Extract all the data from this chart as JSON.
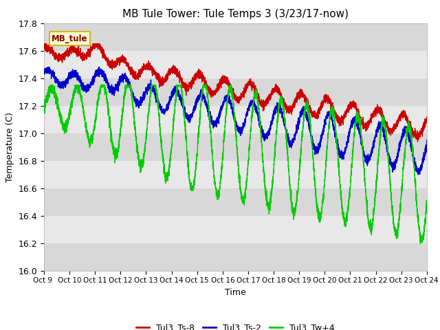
{
  "title": "MB Tule Tower: Tule Temps 3 (3/23/17-now)",
  "xlabel": "Time",
  "ylabel": "Temperature (C)",
  "ylim": [
    16.0,
    17.8
  ],
  "xlim": [
    0,
    15
  ],
  "yticks": [
    16.0,
    16.2,
    16.4,
    16.6,
    16.8,
    17.0,
    17.2,
    17.4,
    17.6,
    17.8
  ],
  "xtick_labels": [
    "Oct 9 ",
    "Oct 10",
    "Oct 11",
    "Oct 12",
    "Oct 13",
    "Oct 14",
    "Oct 15",
    "Oct 16",
    "Oct 17",
    "Oct 18",
    "Oct 19",
    "Oct 20",
    "Oct 21",
    "Oct 22",
    "Oct 23",
    "Oct 24"
  ],
  "legend_labels": [
    "Tul3_Ts-8",
    "Tul3_Ts-2",
    "Tul3_Tw+4"
  ],
  "line_colors": [
    "#cc0000",
    "#0000cc",
    "#00cc00"
  ],
  "line_width": 1.0,
  "bg_color": "#ffffff",
  "plot_bg_color": "#e8e8e8",
  "grid_color": "#ffffff",
  "band_colors": [
    "#d8d8d8",
    "#e8e8e8"
  ],
  "label_box_color": "#ffffcc",
  "label_box_edge": "#ccaa00",
  "label_text": "MB_tule",
  "title_fontsize": 11,
  "axis_fontsize": 9,
  "legend_fontsize": 9
}
